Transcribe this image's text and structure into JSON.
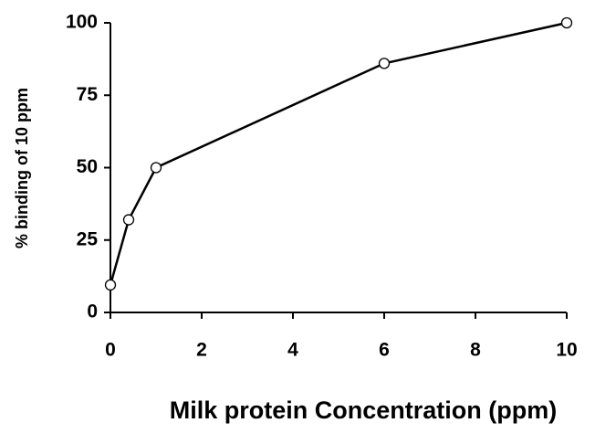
{
  "chart_data": {
    "type": "line",
    "x_label": "Milk protein Concentration (ppm)",
    "y_label": "% binding of 10 ppm",
    "x": [
      0,
      0.4,
      1,
      6,
      10
    ],
    "series": [
      {
        "color": "#000000",
        "values": [
          9.5,
          32,
          50,
          86,
          100
        ]
      }
    ],
    "xlim": [
      0,
      10
    ],
    "xticks": [
      0,
      2,
      4,
      6,
      8,
      10
    ],
    "ylim": [
      0,
      100
    ],
    "yticks": [
      0,
      25,
      50,
      75,
      100
    ],
    "grid": false
  }
}
